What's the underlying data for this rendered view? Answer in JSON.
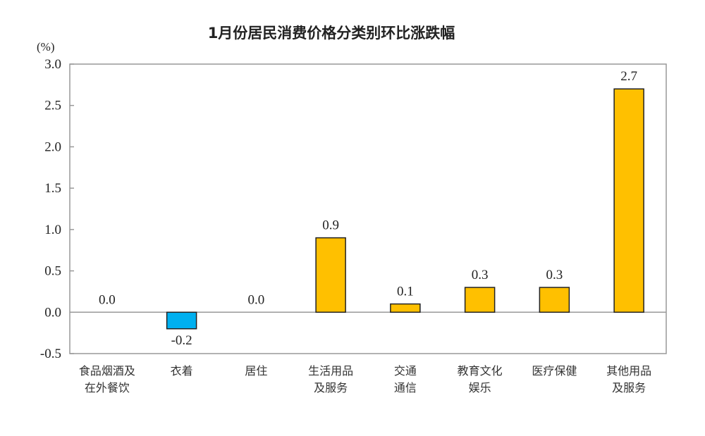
{
  "chart_data": {
    "type": "bar",
    "title": "1月份居民消费价格分类别环比涨跌幅",
    "ylabel": "(%)",
    "xlabel": "",
    "categories": [
      [
        "食品烟酒及",
        "在外餐饮"
      ],
      [
        "衣着"
      ],
      [
        "居住"
      ],
      [
        "生活用品",
        "及服务"
      ],
      [
        "交通",
        "通信"
      ],
      [
        "教育文化",
        "娱乐"
      ],
      [
        "医疗保健"
      ],
      [
        "其他用品",
        "及服务"
      ]
    ],
    "values": [
      0.0,
      -0.2,
      0.0,
      0.9,
      0.1,
      0.3,
      0.3,
      2.7
    ],
    "data_labels": [
      "0.0",
      "-0.2",
      "0.0",
      "0.9",
      "0.1",
      "0.3",
      "0.3",
      "2.7"
    ],
    "ylim": [
      -0.5,
      3.0
    ],
    "yticks": [
      "3.0",
      "2.5",
      "2.0",
      "1.5",
      "1.0",
      "0.5",
      "0.0",
      "-0.5"
    ],
    "grid": false,
    "legend": "none",
    "colors": {
      "positive": "#FFC000",
      "negative": "#00B0F0",
      "frame": "#999999"
    }
  }
}
